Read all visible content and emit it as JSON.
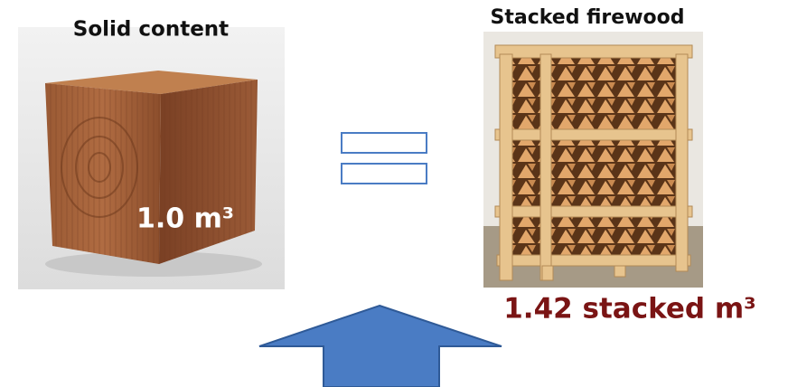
{
  "left": {
    "title": "Solid content",
    "label": "1.0 m³"
  },
  "right": {
    "title": "Stacked firewood",
    "label": "1.42 stacked m³"
  }
}
